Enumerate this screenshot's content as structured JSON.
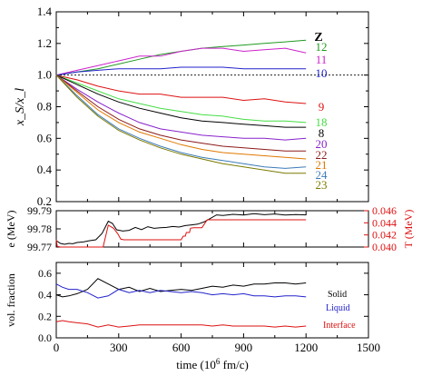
{
  "chart_data": [
    {
      "type": "line",
      "ylabel": "x_S/x_l",
      "ylim": [
        0.2,
        1.4
      ],
      "xlim": [
        0,
        1500
      ],
      "yticks": [
        "0.2",
        "0.4",
        "0.6",
        "0.8",
        "1.0",
        "1.2",
        "1.4"
      ],
      "grid": false,
      "reference_line": 1.0,
      "legend_title": "Z",
      "series": [
        {
          "name": "12",
          "color": "#1f9a1f",
          "x": [
            0,
            100,
            200,
            300,
            400,
            500,
            600,
            700,
            800,
            900,
            1000,
            1100,
            1200
          ],
          "values": [
            1.0,
            1.02,
            1.04,
            1.07,
            1.1,
            1.13,
            1.15,
            1.17,
            1.18,
            1.19,
            1.2,
            1.21,
            1.22
          ]
        },
        {
          "name": "11",
          "color": "#cc22cc",
          "x": [
            0,
            100,
            200,
            300,
            400,
            500,
            600,
            700,
            800,
            900,
            1000,
            1100,
            1200
          ],
          "values": [
            1.0,
            1.03,
            1.06,
            1.09,
            1.12,
            1.12,
            1.15,
            1.17,
            1.17,
            1.15,
            1.16,
            1.17,
            1.14
          ]
        },
        {
          "name": "10",
          "color": "#2222cc",
          "x": [
            0,
            100,
            200,
            300,
            400,
            500,
            600,
            700,
            800,
            900,
            1000,
            1100,
            1200
          ],
          "values": [
            1.0,
            1.02,
            1.03,
            1.04,
            1.04,
            1.04,
            1.05,
            1.05,
            1.05,
            1.04,
            1.04,
            1.04,
            1.04
          ]
        },
        {
          "name": "9",
          "color": "#dd1111",
          "x": [
            0,
            100,
            200,
            300,
            400,
            500,
            600,
            700,
            800,
            900,
            1000,
            1100,
            1200
          ],
          "values": [
            1.0,
            0.97,
            0.93,
            0.9,
            0.88,
            0.88,
            0.86,
            0.86,
            0.86,
            0.84,
            0.85,
            0.83,
            0.82
          ]
        },
        {
          "name": "18",
          "color": "#44dd44",
          "x": [
            0,
            100,
            200,
            300,
            400,
            500,
            600,
            700,
            800,
            900,
            1000,
            1100,
            1200
          ],
          "values": [
            1.0,
            0.95,
            0.9,
            0.85,
            0.82,
            0.79,
            0.77,
            0.75,
            0.74,
            0.72,
            0.71,
            0.71,
            0.7
          ]
        },
        {
          "name": "8",
          "color": "#000000",
          "x": [
            0,
            100,
            200,
            300,
            400,
            500,
            600,
            700,
            800,
            900,
            1000,
            1100,
            1200
          ],
          "values": [
            1.0,
            0.94,
            0.88,
            0.83,
            0.79,
            0.76,
            0.73,
            0.71,
            0.7,
            0.69,
            0.68,
            0.67,
            0.67
          ]
        },
        {
          "name": "20",
          "color": "#8822cc",
          "x": [
            0,
            100,
            200,
            300,
            400,
            500,
            600,
            700,
            800,
            900,
            1000,
            1100,
            1200
          ],
          "values": [
            1.0,
            0.91,
            0.83,
            0.76,
            0.7,
            0.66,
            0.64,
            0.62,
            0.61,
            0.6,
            0.6,
            0.59,
            0.6
          ]
        },
        {
          "name": "22",
          "color": "#8b1a1a",
          "x": [
            0,
            100,
            200,
            300,
            400,
            500,
            600,
            700,
            800,
            900,
            1000,
            1100,
            1200
          ],
          "values": [
            1.0,
            0.9,
            0.8,
            0.72,
            0.66,
            0.62,
            0.59,
            0.57,
            0.55,
            0.54,
            0.53,
            0.52,
            0.52
          ]
        },
        {
          "name": "21",
          "color": "#e07800",
          "x": [
            0,
            100,
            200,
            300,
            400,
            500,
            600,
            700,
            800,
            900,
            1000,
            1100,
            1200
          ],
          "values": [
            1.0,
            0.89,
            0.78,
            0.7,
            0.64,
            0.6,
            0.56,
            0.53,
            0.51,
            0.5,
            0.49,
            0.48,
            0.47
          ]
        },
        {
          "name": "24",
          "color": "#3c7ab8",
          "x": [
            0,
            100,
            200,
            300,
            400,
            500,
            600,
            700,
            800,
            900,
            1000,
            1100,
            1200
          ],
          "values": [
            1.0,
            0.87,
            0.75,
            0.66,
            0.6,
            0.55,
            0.51,
            0.48,
            0.46,
            0.44,
            0.42,
            0.41,
            0.42
          ]
        },
        {
          "name": "23",
          "color": "#7a7a00",
          "x": [
            0,
            100,
            200,
            300,
            400,
            500,
            600,
            700,
            800,
            900,
            1000,
            1100,
            1200
          ],
          "values": [
            1.0,
            0.86,
            0.74,
            0.65,
            0.59,
            0.54,
            0.5,
            0.47,
            0.44,
            0.42,
            0.4,
            0.38,
            0.38
          ]
        }
      ]
    },
    {
      "type": "line",
      "ylabel": "e (MeV)",
      "y2label": "T (MeV)",
      "ylim": [
        99.77,
        99.79
      ],
      "y2lim": [
        0.04,
        0.046
      ],
      "xlim": [
        0,
        1500
      ],
      "yticks": [
        "99.77",
        "99.78",
        "99.79"
      ],
      "y2ticks": [
        "0.040",
        "0.042",
        "0.044",
        "0.046"
      ],
      "series": [
        {
          "name": "e",
          "axis": "left",
          "color": "#000000",
          "x": [
            0,
            20,
            40,
            60,
            80,
            100,
            130,
            160,
            190,
            220,
            250,
            270,
            290,
            320,
            350,
            380,
            410,
            440,
            470,
            500,
            530,
            560,
            590,
            620,
            650,
            680,
            710,
            740,
            770,
            800,
            850,
            900,
            950,
            1000,
            1050,
            1100,
            1150,
            1200
          ],
          "values": [
            99.7735,
            99.772,
            99.7715,
            99.772,
            99.7718,
            99.7725,
            99.7728,
            99.7735,
            99.774,
            99.7775,
            99.7842,
            99.783,
            99.7795,
            99.7788,
            99.7792,
            99.7808,
            99.7796,
            99.7812,
            99.7803,
            99.7806,
            99.7808,
            99.7813,
            99.781,
            99.7818,
            99.7822,
            99.7826,
            99.7838,
            99.7857,
            99.7877,
            99.7874,
            99.788,
            99.7876,
            99.7884,
            99.7878,
            99.7882,
            99.7876,
            99.7879,
            99.7877
          ]
        },
        {
          "name": "T",
          "axis": "right",
          "color": "#dd1111",
          "x": [
            0,
            5,
            20,
            225,
            250,
            275,
            295,
            310,
            325,
            600,
            610,
            620,
            625,
            640,
            645,
            660,
            700,
            725,
            1200
          ],
          "values": [
            0.0412,
            0.0401,
            0.04,
            0.04,
            0.0436,
            0.0431,
            0.0422,
            0.0413,
            0.0412,
            0.0412,
            0.0418,
            0.0418,
            0.0424,
            0.0424,
            0.0431,
            0.0432,
            0.0432,
            0.0445,
            0.0445
          ]
        }
      ]
    },
    {
      "type": "line",
      "ylabel": "vol. fraction",
      "xlabel": "time (10^6 fm/c)",
      "ylim": [
        0.0,
        0.7
      ],
      "xlim": [
        0,
        1500
      ],
      "yticks": [
        "0.0",
        "0.2",
        "0.4",
        "0.6"
      ],
      "xticks": [
        "0",
        "300",
        "600",
        "900",
        "1200",
        "1500"
      ],
      "series": [
        {
          "name": "Solid",
          "color": "#000000",
          "x": [
            0,
            30,
            60,
            100,
            150,
            200,
            250,
            300,
            350,
            400,
            450,
            500,
            550,
            600,
            650,
            700,
            750,
            800,
            850,
            900,
            950,
            1000,
            1050,
            1100,
            1150,
            1200
          ],
          "values": [
            0.4,
            0.38,
            0.39,
            0.41,
            0.45,
            0.55,
            0.5,
            0.45,
            0.47,
            0.43,
            0.46,
            0.43,
            0.44,
            0.45,
            0.44,
            0.46,
            0.48,
            0.47,
            0.49,
            0.48,
            0.5,
            0.5,
            0.51,
            0.51,
            0.5,
            0.51
          ]
        },
        {
          "name": "Liquid",
          "color": "#2222cc",
          "x": [
            0,
            30,
            60,
            100,
            150,
            200,
            250,
            300,
            350,
            400,
            450,
            500,
            550,
            600,
            650,
            700,
            750,
            800,
            850,
            900,
            950,
            1000,
            1050,
            1100,
            1150,
            1200
          ],
          "values": [
            0.5,
            0.47,
            0.45,
            0.45,
            0.42,
            0.37,
            0.39,
            0.45,
            0.42,
            0.44,
            0.42,
            0.44,
            0.43,
            0.42,
            0.43,
            0.42,
            0.4,
            0.41,
            0.4,
            0.41,
            0.39,
            0.39,
            0.38,
            0.39,
            0.39,
            0.38
          ]
        },
        {
          "name": "Interface",
          "color": "#dd1111",
          "x": [
            0,
            30,
            60,
            100,
            150,
            200,
            250,
            300,
            350,
            400,
            450,
            500,
            550,
            600,
            650,
            700,
            750,
            800,
            850,
            900,
            950,
            1000,
            1050,
            1100,
            1150,
            1200
          ],
          "values": [
            0.15,
            0.16,
            0.15,
            0.14,
            0.13,
            0.1,
            0.12,
            0.1,
            0.11,
            0.12,
            0.12,
            0.12,
            0.12,
            0.12,
            0.12,
            0.12,
            0.11,
            0.12,
            0.11,
            0.11,
            0.11,
            0.11,
            0.1,
            0.11,
            0.1,
            0.11
          ]
        }
      ]
    }
  ]
}
